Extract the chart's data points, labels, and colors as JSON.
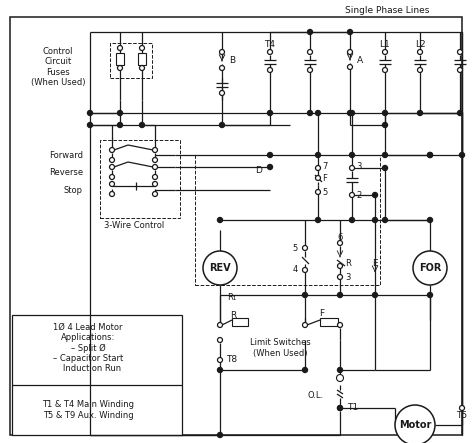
{
  "bg": "#ffffff",
  "lc": "#1a1a1a",
  "figsize": [
    4.74,
    4.43
  ],
  "dpi": 100,
  "labels": {
    "single_phase": "Single Phase Lines",
    "ctrl_fuses": "Control\nCircuit\nFuses\n(When Used)",
    "forward": "Forward",
    "reverse": "Reverse",
    "stop": "Stop",
    "three_wire": "3-Wire Control",
    "rev": "REV",
    "for_lbl": "FOR",
    "limit_sw": "Limit Switches\n(When Used)",
    "motor": "Motor",
    "app_box": "1Ø 4 Lead Motor\nApplications:\n– Split Ø\n– Capacitor Start\n   Induction Run",
    "winding": "T1 & T4 Main Winding\nT5 & T9 Aux. Winding",
    "T4": "T4",
    "B": "B",
    "A": "A",
    "L1": "L1",
    "L2": "L2",
    "D": "D",
    "OL": "O.L.",
    "T1": "T1",
    "T8": "T8",
    "T5": "T5",
    "R1": "R₁",
    "n7": "7",
    "nF": "F",
    "n5": "5",
    "n3": "3",
    "n2": "2",
    "n6": "6",
    "nR": "R",
    "n4": "4",
    "nE": "E",
    "R": "R",
    "F": "F"
  }
}
